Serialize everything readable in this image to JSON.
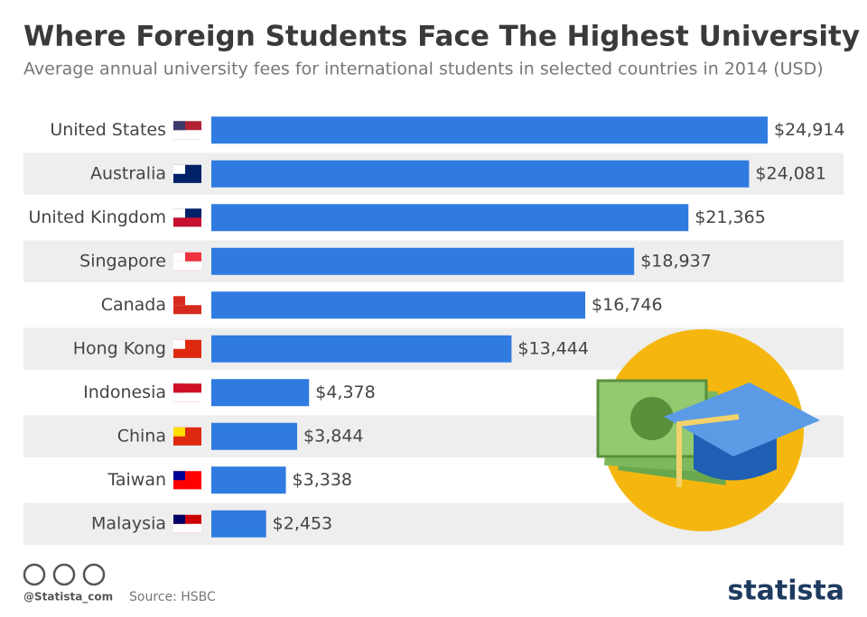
{
  "chart_data": {
    "type": "bar",
    "orientation": "horizontal",
    "title": "Where Foreign Students Face The Highest University Fees",
    "subtitle": "Average annual university fees for international students in selected countries in 2014 (USD)",
    "categories": [
      "United States",
      "Australia",
      "United Kingdom",
      "Singapore",
      "Canada",
      "Hong Kong",
      "Indonesia",
      "China",
      "Taiwan",
      "Malaysia"
    ],
    "values": [
      24914,
      24081,
      21365,
      18937,
      16746,
      13444,
      4378,
      3844,
      3338,
      2453
    ],
    "value_labels": [
      "$24,914",
      "$24,081",
      "$21,365",
      "$18,937",
      "$16,746",
      "$13,444",
      "$4,378",
      "$3,844",
      "$3,338",
      "$2,453"
    ],
    "color": "#2f7be0",
    "credit": "@Statista_com",
    "source": "Source: HSBC",
    "brand": "statista"
  }
}
